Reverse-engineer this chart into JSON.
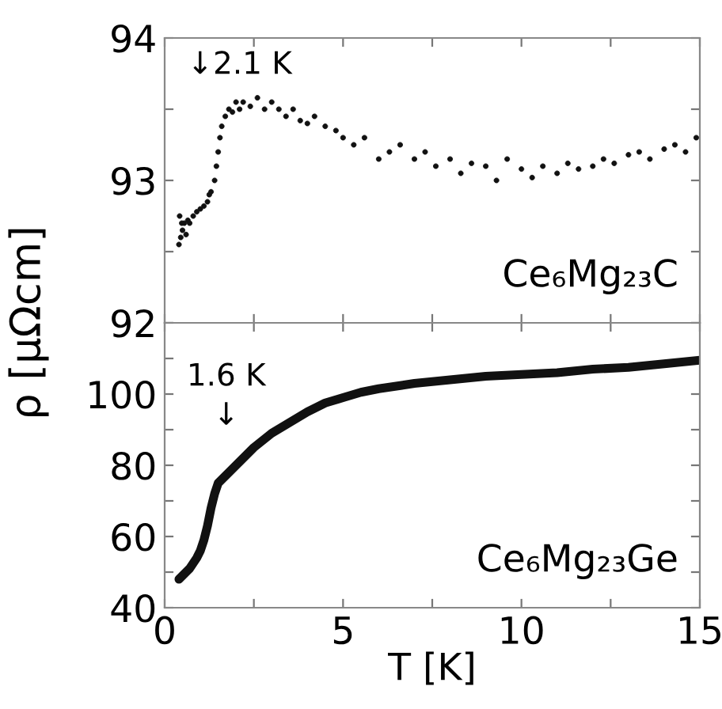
{
  "chart_data": [
    {
      "type": "scatter",
      "xlim": [
        0,
        15
      ],
      "ylim": [
        92,
        94
      ],
      "xticks": [
        {
          "value": 0,
          "label": null
        },
        {
          "value": 2.5,
          "label": null
        },
        {
          "value": 5,
          "label": null
        },
        {
          "value": 7.5,
          "label": null
        },
        {
          "value": 10,
          "label": null
        },
        {
          "value": 12.5,
          "label": null
        },
        {
          "value": 15,
          "label": null
        }
      ],
      "yticks": [
        92,
        {
          "value": 92.5,
          "label": null
        },
        93,
        {
          "value": 93.5,
          "label": null
        },
        94
      ],
      "tick_labels": "y",
      "grid": false,
      "marker": "circle",
      "ylabel": "ρ [μΩcm]",
      "annotations": [
        {
          "text": "↓2.1 K",
          "x": 2.1,
          "y": 93.55
        }
      ],
      "series": [
        {
          "name": "Ce₆Mg₂₃C",
          "color": "#111111",
          "x": [
            0.4,
            0.42,
            0.45,
            0.48,
            0.5,
            0.55,
            0.6,
            0.65,
            0.7,
            0.8,
            0.9,
            1.0,
            1.1,
            1.2,
            1.25,
            1.3,
            1.4,
            1.45,
            1.5,
            1.55,
            1.6,
            1.7,
            1.8,
            1.9,
            2.0,
            2.1,
            2.2,
            2.4,
            2.6,
            2.8,
            3.0,
            3.2,
            3.4,
            3.6,
            3.8,
            4.0,
            4.2,
            4.5,
            4.8,
            5.0,
            5.3,
            5.6,
            6.0,
            6.3,
            6.6,
            7.0,
            7.3,
            7.6,
            8.0,
            8.3,
            8.6,
            9.0,
            9.3,
            9.6,
            10.0,
            10.3,
            10.6,
            11.0,
            11.3,
            11.6,
            12.0,
            12.3,
            12.6,
            13.0,
            13.3,
            13.6,
            14.0,
            14.3,
            14.6,
            14.9
          ],
          "values": [
            92.55,
            92.75,
            92.6,
            92.7,
            92.65,
            92.7,
            92.62,
            92.72,
            92.7,
            92.75,
            92.78,
            92.8,
            92.82,
            92.85,
            92.9,
            92.92,
            93.0,
            93.1,
            93.2,
            93.3,
            93.38,
            93.45,
            93.5,
            93.48,
            93.55,
            93.5,
            93.55,
            93.52,
            93.58,
            93.5,
            93.55,
            93.5,
            93.45,
            93.5,
            93.42,
            93.4,
            93.45,
            93.38,
            93.35,
            93.3,
            93.25,
            93.3,
            93.15,
            93.2,
            93.25,
            93.15,
            93.2,
            93.1,
            93.15,
            93.05,
            93.12,
            93.1,
            93.0,
            93.15,
            93.08,
            93.02,
            93.1,
            93.05,
            93.12,
            93.08,
            93.1,
            93.15,
            93.12,
            93.18,
            93.2,
            93.15,
            93.22,
            93.25,
            93.2,
            93.3
          ]
        }
      ]
    },
    {
      "type": "line",
      "xlim": [
        0,
        15
      ],
      "ylim": [
        40,
        120
      ],
      "xticks": [
        0,
        {
          "value": 2.5,
          "label": null
        },
        5,
        {
          "value": 7.5,
          "label": null
        },
        10,
        {
          "value": 12.5,
          "label": null
        },
        15
      ],
      "yticks": [
        40,
        {
          "value": 50,
          "label": null
        },
        60,
        {
          "value": 70,
          "label": null
        },
        80,
        {
          "value": 90,
          "label": null
        },
        100,
        {
          "value": 110,
          "label": null
        },
        {
          "value": 120,
          "label": null
        }
      ],
      "grid": false,
      "xlabel": "T [K]",
      "annotations": [
        "1.6 K\n↓"
      ],
      "series": [
        {
          "name": "Ce₆Mg₂₃Ge",
          "color": "#111111",
          "x": [
            0.4,
            0.5,
            0.7,
            0.9,
            1.0,
            1.1,
            1.2,
            1.3,
            1.4,
            1.5,
            1.6,
            1.8,
            2.0,
            2.5,
            3.0,
            3.5,
            4.0,
            4.5,
            5.0,
            5.5,
            6.0,
            7.0,
            8.0,
            9.0,
            10.0,
            11.0,
            12.0,
            13.0,
            14.0,
            15.0
          ],
          "values": [
            48,
            49,
            51,
            54,
            56,
            59,
            63,
            68,
            72,
            75,
            76,
            78,
            80,
            85,
            89,
            92,
            95,
            97.5,
            99,
            100.5,
            101.5,
            103,
            104,
            105,
            105.5,
            106,
            107,
            107.5,
            108.5,
            109.5
          ]
        }
      ]
    }
  ]
}
